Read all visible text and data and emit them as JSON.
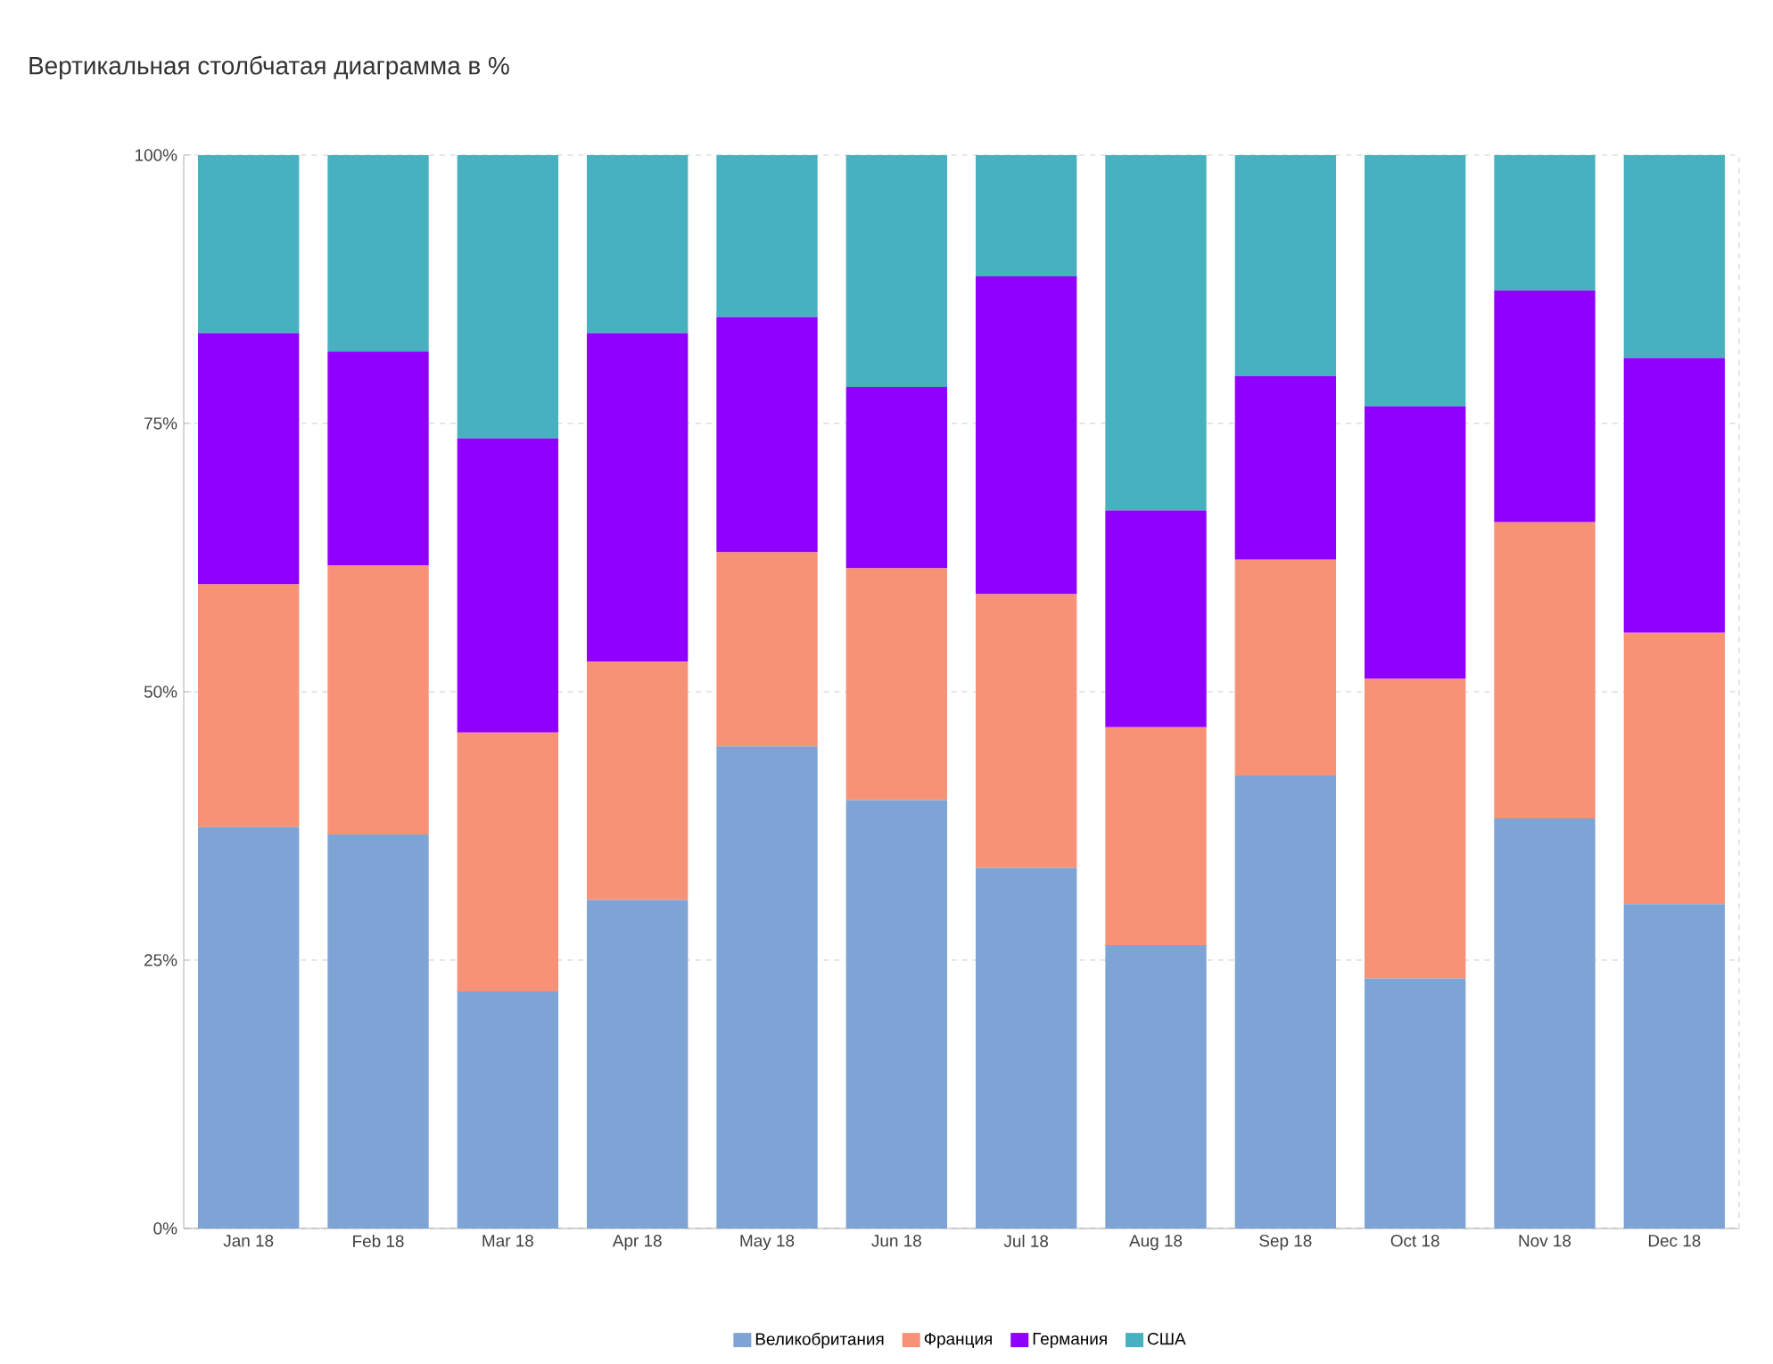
{
  "chart_data": {
    "type": "bar",
    "title": "Вертикальная столбчатая диаграмма в %",
    "stacked": true,
    "categories": [
      "Jan 18",
      "Feb 18",
      "Mar 18",
      "Apr 18",
      "May 18",
      "Jun 18",
      "Jul 18",
      "Aug 18",
      "Sep 18",
      "Oct 18",
      "Nov 18",
      "Dec 18"
    ],
    "series": [
      {
        "name": "Великобритания",
        "color": "#7ea3d5",
        "values": [
          37.4,
          36.7,
          22.1,
          30.6,
          44.9,
          39.9,
          33.6,
          26.4,
          42.2,
          23.3,
          38.2,
          30.2
        ]
      },
      {
        "name": "Франция",
        "color": "#f79277",
        "values": [
          22.6,
          25.1,
          24.1,
          22.2,
          18.1,
          21.6,
          25.5,
          20.3,
          20.1,
          27.9,
          27.6,
          25.3
        ]
      },
      {
        "name": "Германия",
        "color": "#8f00ff",
        "values": [
          23.4,
          19.9,
          27.4,
          30.6,
          21.9,
          16.9,
          29.6,
          20.2,
          17.1,
          25.4,
          21.6,
          25.6
        ]
      },
      {
        "name": "США",
        "color": "#47b1c0",
        "values": [
          16.6,
          18.3,
          26.4,
          16.6,
          15.1,
          21.6,
          11.3,
          33.1,
          20.6,
          23.4,
          12.6,
          18.9
        ]
      }
    ],
    "ylim": [
      0,
      100
    ],
    "yticks": [
      {
        "value": 0,
        "label": "0%"
      },
      {
        "value": 25,
        "label": "25%"
      },
      {
        "value": 50,
        "label": "50%"
      },
      {
        "value": 75,
        "label": "75%"
      },
      {
        "value": 100,
        "label": "100%"
      }
    ],
    "grid": "y",
    "legend": "bottom"
  }
}
